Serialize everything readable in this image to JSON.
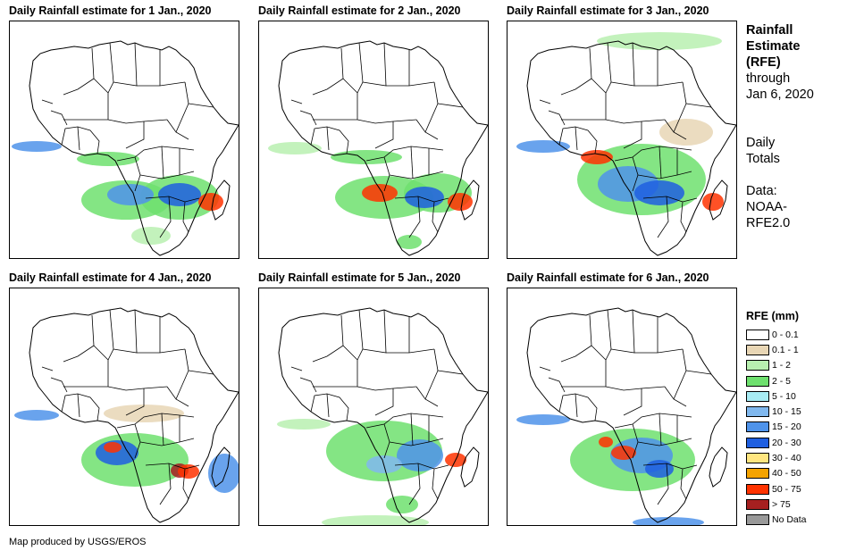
{
  "panels": [
    {
      "title": "Daily Rainfall estimate for 1 Jan., 2020"
    },
    {
      "title": "Daily Rainfall estimate for 2 Jan., 2020"
    },
    {
      "title": "Daily Rainfall estimate for 3 Jan., 2020"
    },
    {
      "title": "Daily Rainfall estimate for 4 Jan., 2020"
    },
    {
      "title": "Daily Rainfall estimate for 5 Jan., 2020"
    },
    {
      "title": "Daily Rainfall estimate for 6 Jan., 2020"
    }
  ],
  "side": {
    "title_line1": "Rainfall",
    "title_line2": "Estimate",
    "title_line3": "(RFE)",
    "through_line1": "through",
    "through_line2": "Jan 6, 2020",
    "totals_line1": "Daily",
    "totals_line2": "Totals",
    "data_line1": "Data:",
    "data_line2": "NOAA-",
    "data_line3": "RFE2.0"
  },
  "legend": {
    "title": "RFE (mm)",
    "items": [
      {
        "label": "0 - 0.1",
        "color": "#ffffff"
      },
      {
        "label": "0.1 - 1",
        "color": "#e8d6b5"
      },
      {
        "label": "1 - 2",
        "color": "#b8f0b0"
      },
      {
        "label": "2 - 5",
        "color": "#6ee06e"
      },
      {
        "label": "5 - 10",
        "color": "#a8ecf4"
      },
      {
        "label": "10 - 15",
        "color": "#80b8ee"
      },
      {
        "label": "15 - 20",
        "color": "#4f93ea"
      },
      {
        "label": "20 - 30",
        "color": "#1f5fe0"
      },
      {
        "label": "30 - 40",
        "color": "#ffe680"
      },
      {
        "label": "40 - 50",
        "color": "#f5a300"
      },
      {
        "label": "50 - 75",
        "color": "#ff3300"
      },
      {
        "label": "> 75",
        "color": "#a52020"
      },
      {
        "label": "No Data",
        "color": "#999999"
      }
    ]
  },
  "credit": "Map produced by USGS/EROS"
}
